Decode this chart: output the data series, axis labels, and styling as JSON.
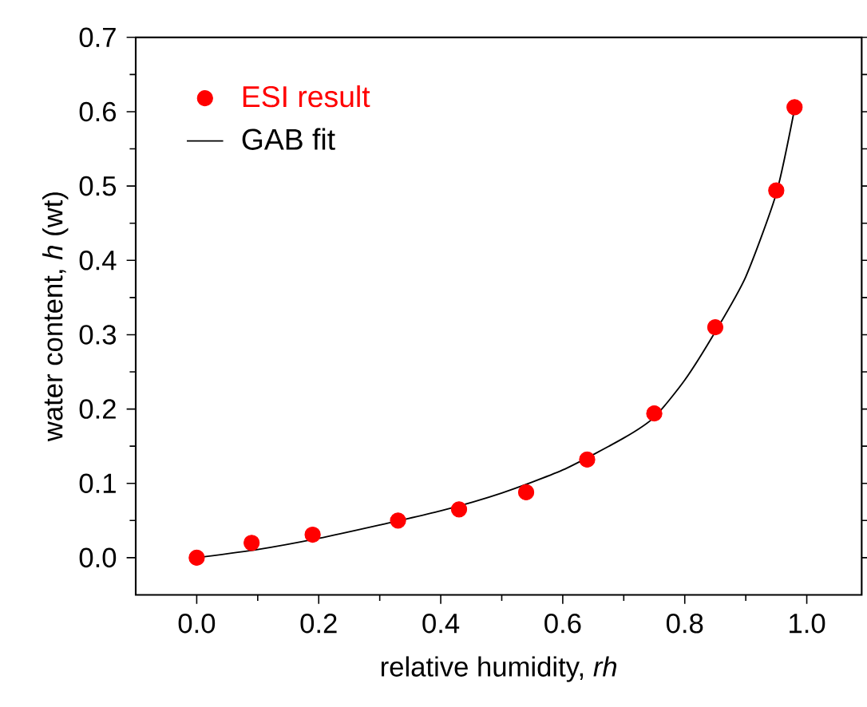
{
  "chart_data": {
    "type": "scatter",
    "xlabel": "relative humidity, *rh*",
    "ylabel": "water content, *h* (wt)",
    "xlim": [
      -0.1,
      1.09
    ],
    "ylim": [
      -0.05,
      0.7
    ],
    "xticks": [
      {
        "value": 0,
        "label": "0.0"
      },
      {
        "value": 0.2,
        "label": "0.2"
      },
      {
        "value": 0.4,
        "label": "0.4"
      },
      {
        "value": 0.6,
        "label": "0.6"
      },
      {
        "value": 0.8,
        "label": "0.8"
      },
      {
        "value": 1,
        "label": "1.0"
      }
    ],
    "yticks": [
      {
        "value": 0,
        "label": "0.0"
      },
      {
        "value": 0.1,
        "label": "0.1"
      },
      {
        "value": 0.2,
        "label": "0.2"
      },
      {
        "value": 0.3,
        "label": "0.3"
      },
      {
        "value": 0.4,
        "label": "0.4"
      },
      {
        "value": 0.5,
        "label": "0.5"
      },
      {
        "value": 0.6,
        "label": "0.6"
      },
      {
        "value": 0.7,
        "label": "0.7"
      }
    ],
    "legend": "top left",
    "marker": "circle",
    "grid": false,
    "series": [
      {
        "name": "ESI result",
        "color": "#ff0000",
        "x": [
          0,
          0.09,
          0.19,
          0.33,
          0.43,
          0.54,
          0.64,
          0.75,
          0.85,
          0.95,
          0.98
        ],
        "values": [
          0,
          0.02,
          0.031,
          0.05,
          0.065,
          0.088,
          0.132,
          0.194,
          0.31,
          0.494,
          0.606
        ]
      },
      {
        "name": "GAB fit",
        "type": "line",
        "marker": "none",
        "line_style": "solid",
        "color": "#000000",
        "x": [
          0,
          0.1,
          0.2,
          0.3,
          0.4,
          0.5,
          0.6,
          0.7,
          0.75,
          0.8,
          0.85,
          0.9,
          0.95,
          0.98
        ],
        "values": [
          0,
          0.011,
          0.026,
          0.044,
          0.063,
          0.087,
          0.118,
          0.161,
          0.189,
          0.239,
          0.304,
          0.378,
          0.49,
          0.604
        ]
      }
    ]
  }
}
